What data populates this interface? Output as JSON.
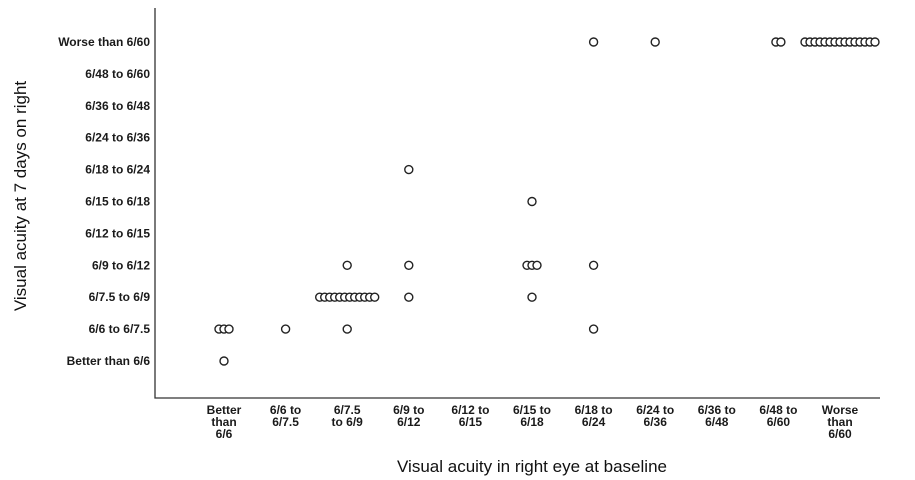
{
  "chart_data": {
    "type": "scatter",
    "title": "",
    "xlabel": "Visual acuity in right eye at baseline",
    "ylabel": "Visual acuity at 7 days on right",
    "x_categories": [
      "Better than 6/6",
      "6/6 to 6/7.5",
      "6/7.5 to 6/9",
      "6/9 to 6/12",
      "6/12 to 6/15",
      "6/15 to 6/18",
      "6/18 to 6/24",
      "6/24 to 6/36",
      "6/36 to 6/48",
      "6/48 to 6/60",
      "Worse than 6/60"
    ],
    "x_tick_lines": [
      [
        "Better",
        "than",
        "6/6"
      ],
      [
        "6/6 to",
        "6/7.5"
      ],
      [
        "6/7.5",
        "to 6/9"
      ],
      [
        "6/9 to",
        "6/12"
      ],
      [
        "6/12 to",
        "6/15"
      ],
      [
        "6/15 to",
        "6/18"
      ],
      [
        "6/18 to",
        "6/24"
      ],
      [
        "6/24 to",
        "6/36"
      ],
      [
        "6/36 to",
        "6/48"
      ],
      [
        "6/48 to",
        "6/60"
      ],
      [
        "Worse",
        "than",
        "6/60"
      ]
    ],
    "y_categories": [
      "Better than 6/6",
      "6/6 to 6/7.5",
      "6/7.5 to 6/9",
      "6/9 to 6/12",
      "6/12 to 6/15",
      "6/15 to 6/18",
      "6/18 to 6/24",
      "6/24 to 6/36",
      "6/36 to 6/48",
      "6/48 to 6/60",
      "Worse than 6/60"
    ],
    "points": [
      {
        "x": "Better than 6/6",
        "y": "Better than 6/6",
        "count": 1
      },
      {
        "x": "Better than 6/6",
        "y": "6/6 to 6/7.5",
        "count": 3
      },
      {
        "x": "6/6 to 6/7.5",
        "y": "6/6 to 6/7.5",
        "count": 1
      },
      {
        "x": "6/7.5 to 6/9",
        "y": "6/6 to 6/7.5",
        "count": 1
      },
      {
        "x": "6/7.5 to 6/9",
        "y": "6/7.5 to 6/9",
        "count": 12
      },
      {
        "x": "6/7.5 to 6/9",
        "y": "6/9 to 6/12",
        "count": 1
      },
      {
        "x": "6/9 to 6/12",
        "y": "6/7.5 to 6/9",
        "count": 1
      },
      {
        "x": "6/9 to 6/12",
        "y": "6/9 to 6/12",
        "count": 1
      },
      {
        "x": "6/9 to 6/12",
        "y": "6/18 to 6/24",
        "count": 1
      },
      {
        "x": "6/15 to 6/18",
        "y": "6/7.5 to 6/9",
        "count": 1
      },
      {
        "x": "6/15 to 6/18",
        "y": "6/9 to 6/12",
        "count": 3
      },
      {
        "x": "6/15 to 6/18",
        "y": "6/15 to 6/18",
        "count": 1
      },
      {
        "x": "6/18 to 6/24",
        "y": "6/6 to 6/7.5",
        "count": 1
      },
      {
        "x": "6/18 to 6/24",
        "y": "6/9 to 6/12",
        "count": 1
      },
      {
        "x": "6/18 to 6/24",
        "y": "Worse than 6/60",
        "count": 1
      },
      {
        "x": "6/24 to 6/36",
        "y": "Worse than 6/60",
        "count": 1
      },
      {
        "x": "6/48 to 6/60",
        "y": "Worse than 6/60",
        "count": 2
      },
      {
        "x": "Worse than 6/60",
        "y": "Worse than 6/60",
        "count": 15
      }
    ],
    "grid": false,
    "legend": "none"
  }
}
